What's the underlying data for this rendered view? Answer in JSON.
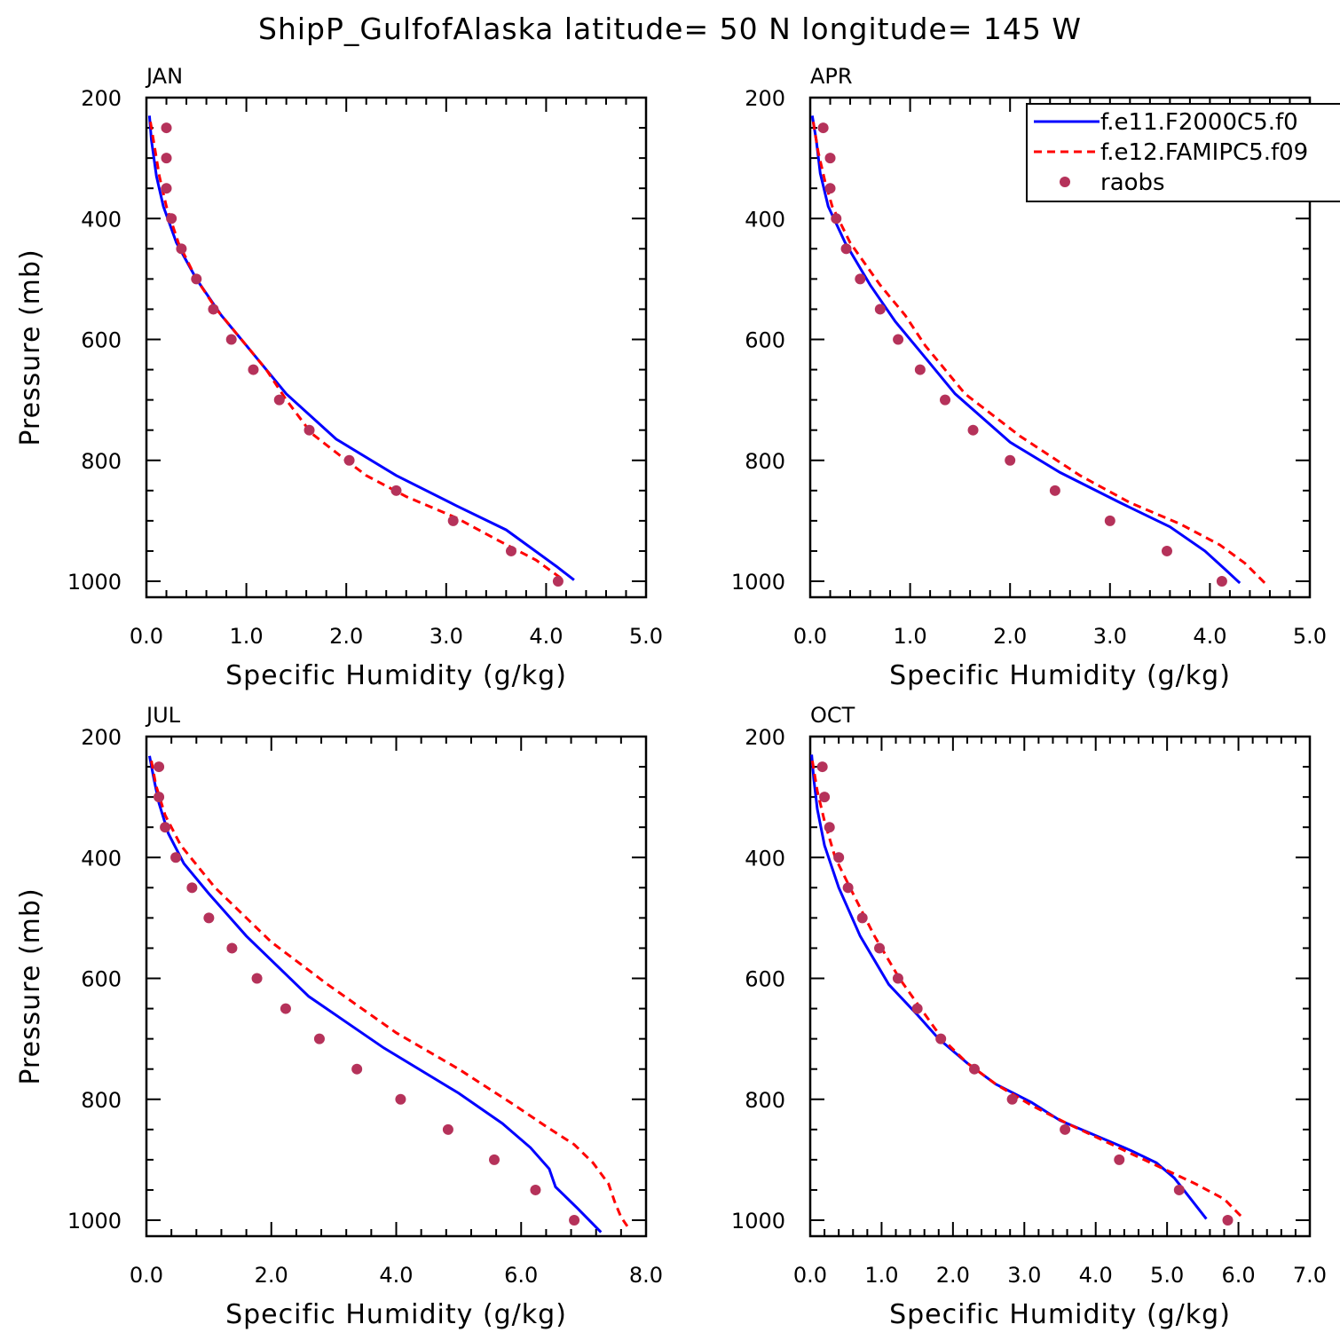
{
  "title": "ShipP_GulfofAlaska  latitude= 50 N longitude= 145 W",
  "colors": {
    "f_e11": "#0000ff",
    "f_e12": "#ff0000",
    "raobs": "#b5325a"
  },
  "legend": {
    "location": "top-right (APR panel)",
    "entries": [
      {
        "label": "f.e11.F2000C5.f0",
        "style": "solid",
        "color": "#0000ff"
      },
      {
        "label": "f.e12.FAMIPC5.f09",
        "style": "dashed",
        "color": "#ff0000"
      },
      {
        "label": "raobs",
        "style": "dots",
        "color": "#b5325a"
      }
    ]
  },
  "chart_data": [
    {
      "type": "line",
      "title": "JAN",
      "xlabel": "Specific Humidity (g/kg)",
      "ylabel": "Pressure (mb)",
      "xlim": [
        0,
        5
      ],
      "ylim": [
        1000,
        200
      ],
      "y_inverted": true,
      "x_ticks": [
        "0.0",
        "1.0",
        "2.0",
        "3.0",
        "4.0",
        "5.0"
      ],
      "y_ticks": [
        "200",
        "400",
        "600",
        "800",
        "1000"
      ],
      "series": [
        {
          "name": "f.e11.F2000C5.f0",
          "style": "solid",
          "points": [
            [
              0.03,
              230
            ],
            [
              0.05,
              270
            ],
            [
              0.1,
              330
            ],
            [
              0.17,
              380
            ],
            [
              0.3,
              440
            ],
            [
              0.5,
              500
            ],
            [
              0.75,
              560
            ],
            [
              1.0,
              610
            ],
            [
              1.4,
              690
            ],
            [
              1.9,
              765
            ],
            [
              2.5,
              825
            ],
            [
              3.1,
              875
            ],
            [
              3.6,
              915
            ],
            [
              3.85,
              945
            ],
            [
              4.1,
              975
            ],
            [
              4.28,
              998
            ]
          ]
        },
        {
          "name": "f.e12.FAMIPC5.f09",
          "style": "dashed",
          "points": [
            [
              0.04,
              240
            ],
            [
              0.08,
              280
            ],
            [
              0.13,
              330
            ],
            [
              0.2,
              380
            ],
            [
              0.32,
              440
            ],
            [
              0.5,
              500
            ],
            [
              0.7,
              550
            ],
            [
              0.95,
              600
            ],
            [
              1.2,
              650
            ],
            [
              1.4,
              700
            ],
            [
              1.65,
              755
            ],
            [
              2.0,
              800
            ],
            [
              2.2,
              825
            ],
            [
              2.6,
              860
            ],
            [
              3.1,
              895
            ],
            [
              3.55,
              935
            ],
            [
              3.9,
              965
            ],
            [
              4.15,
              995
            ]
          ]
        },
        {
          "name": "raobs",
          "style": "dots",
          "points": [
            [
              0.2,
              250
            ],
            [
              0.2,
              300
            ],
            [
              0.2,
              350
            ],
            [
              0.25,
              400
            ],
            [
              0.35,
              450
            ],
            [
              0.5,
              500
            ],
            [
              0.67,
              550
            ],
            [
              0.85,
              600
            ],
            [
              1.07,
              650
            ],
            [
              1.33,
              700
            ],
            [
              1.63,
              750
            ],
            [
              2.03,
              800
            ],
            [
              2.5,
              850
            ],
            [
              3.07,
              900
            ],
            [
              3.65,
              950
            ],
            [
              4.12,
              1000
            ]
          ]
        }
      ]
    },
    {
      "type": "line",
      "title": "APR",
      "xlabel": "Specific Humidity (g/kg)",
      "ylabel": "",
      "xlim": [
        0,
        5
      ],
      "ylim": [
        1000,
        200
      ],
      "y_inverted": true,
      "x_ticks": [
        "0.0",
        "1.0",
        "2.0",
        "3.0",
        "4.0",
        "5.0"
      ],
      "y_ticks": [
        "200",
        "400",
        "600",
        "800",
        "1000"
      ],
      "series": [
        {
          "name": "f.e11.F2000C5.f0",
          "style": "solid",
          "points": [
            [
              0.02,
              230
            ],
            [
              0.06,
              270
            ],
            [
              0.1,
              325
            ],
            [
              0.18,
              380
            ],
            [
              0.35,
              440
            ],
            [
              0.6,
              510
            ],
            [
              0.85,
              570
            ],
            [
              1.1,
              620
            ],
            [
              1.45,
              690
            ],
            [
              2.0,
              770
            ],
            [
              2.5,
              820
            ],
            [
              3.1,
              870
            ],
            [
              3.6,
              910
            ],
            [
              3.95,
              950
            ],
            [
              4.15,
              980
            ],
            [
              4.3,
              1003
            ]
          ]
        },
        {
          "name": "f.e12.FAMIPC5.f09",
          "style": "dashed",
          "points": [
            [
              0.03,
              240
            ],
            [
              0.08,
              290
            ],
            [
              0.15,
              340
            ],
            [
              0.22,
              380
            ],
            [
              0.4,
              440
            ],
            [
              0.7,
              510
            ],
            [
              0.95,
              560
            ],
            [
              1.15,
              610
            ],
            [
              1.55,
              690
            ],
            [
              2.1,
              760
            ],
            [
              2.7,
              825
            ],
            [
              3.2,
              870
            ],
            [
              3.7,
              905
            ],
            [
              4.1,
              940
            ],
            [
              4.35,
              970
            ],
            [
              4.55,
              1003
            ]
          ]
        },
        {
          "name": "raobs",
          "style": "dots",
          "points": [
            [
              0.13,
              250
            ],
            [
              0.2,
              300
            ],
            [
              0.2,
              350
            ],
            [
              0.26,
              400
            ],
            [
              0.36,
              450
            ],
            [
              0.5,
              500
            ],
            [
              0.7,
              550
            ],
            [
              0.88,
              600
            ],
            [
              1.1,
              650
            ],
            [
              1.35,
              700
            ],
            [
              1.63,
              750
            ],
            [
              2.0,
              800
            ],
            [
              2.45,
              850
            ],
            [
              3.0,
              900
            ],
            [
              3.57,
              950
            ],
            [
              4.12,
              1000
            ]
          ]
        }
      ]
    },
    {
      "type": "line",
      "title": "JUL",
      "xlabel": "Specific Humidity (g/kg)",
      "ylabel": "Pressure (mb)",
      "xlim": [
        0,
        8
      ],
      "ylim": [
        1000,
        200
      ],
      "y_inverted": true,
      "x_ticks": [
        "0.0",
        "2.0",
        "4.0",
        "6.0",
        "8.0"
      ],
      "y_ticks": [
        "200",
        "400",
        "600",
        "800",
        "1000"
      ],
      "series": [
        {
          "name": "f.e11.F2000C5.f0",
          "style": "solid",
          "points": [
            [
              0.05,
              232
            ],
            [
              0.12,
              270
            ],
            [
              0.2,
              310
            ],
            [
              0.35,
              360
            ],
            [
              0.6,
              410
            ],
            [
              1.0,
              460
            ],
            [
              1.6,
              530
            ],
            [
              2.6,
              630
            ],
            [
              3.8,
              715
            ],
            [
              5.0,
              790
            ],
            [
              5.7,
              840
            ],
            [
              6.15,
              880
            ],
            [
              6.45,
              915
            ],
            [
              6.55,
              945
            ],
            [
              6.9,
              980
            ],
            [
              7.28,
              1020
            ]
          ]
        },
        {
          "name": "f.e12.FAMIPC5.f09",
          "style": "dashed",
          "points": [
            [
              0.08,
              240
            ],
            [
              0.15,
              280
            ],
            [
              0.3,
              330
            ],
            [
              0.55,
              380
            ],
            [
              1.1,
              450
            ],
            [
              2.0,
              540
            ],
            [
              2.9,
              610
            ],
            [
              4.0,
              690
            ],
            [
              5.0,
              750
            ],
            [
              5.9,
              810
            ],
            [
              6.4,
              845
            ],
            [
              6.85,
              875
            ],
            [
              7.15,
              905
            ],
            [
              7.4,
              940
            ],
            [
              7.5,
              970
            ],
            [
              7.6,
              995
            ],
            [
              7.7,
              1010
            ]
          ]
        },
        {
          "name": "raobs",
          "style": "dots",
          "points": [
            [
              0.2,
              250
            ],
            [
              0.2,
              300
            ],
            [
              0.3,
              350
            ],
            [
              0.47,
              400
            ],
            [
              0.73,
              450
            ],
            [
              1.0,
              500
            ],
            [
              1.37,
              550
            ],
            [
              1.77,
              600
            ],
            [
              2.23,
              650
            ],
            [
              2.77,
              700
            ],
            [
              3.37,
              750
            ],
            [
              4.07,
              800
            ],
            [
              4.83,
              850
            ],
            [
              5.57,
              900
            ],
            [
              6.23,
              950
            ],
            [
              6.85,
              1000
            ]
          ]
        }
      ]
    },
    {
      "type": "line",
      "title": "OCT",
      "xlabel": "Specific Humidity (g/kg)",
      "ylabel": "",
      "xlim": [
        0,
        7
      ],
      "ylim": [
        1000,
        200
      ],
      "y_inverted": true,
      "x_ticks": [
        "0.0",
        "1.0",
        "2.0",
        "3.0",
        "4.0",
        "5.0",
        "6.0",
        "7.0"
      ],
      "y_ticks": [
        "200",
        "400",
        "600",
        "800",
        "1000"
      ],
      "series": [
        {
          "name": "f.e11.F2000C5.f0",
          "style": "solid",
          "points": [
            [
              0.02,
              230
            ],
            [
              0.05,
              270
            ],
            [
              0.1,
              320
            ],
            [
              0.2,
              380
            ],
            [
              0.4,
              450
            ],
            [
              0.7,
              530
            ],
            [
              1.1,
              610
            ],
            [
              1.5,
              660
            ],
            [
              1.8,
              700
            ],
            [
              2.2,
              740
            ],
            [
              2.6,
              775
            ],
            [
              3.1,
              805
            ],
            [
              3.5,
              835
            ],
            [
              4.0,
              860
            ],
            [
              4.5,
              885
            ],
            [
              4.85,
              905
            ],
            [
              5.1,
              930
            ],
            [
              5.3,
              960
            ],
            [
              5.55,
              998
            ]
          ]
        },
        {
          "name": "f.e12.FAMIPC5.f09",
          "style": "dashed",
          "points": [
            [
              0.03,
              240
            ],
            [
              0.1,
              290
            ],
            [
              0.2,
              340
            ],
            [
              0.35,
              400
            ],
            [
              0.6,
              460
            ],
            [
              0.9,
              530
            ],
            [
              1.25,
              600
            ],
            [
              1.55,
              650
            ],
            [
              1.85,
              700
            ],
            [
              2.2,
              740
            ],
            [
              2.6,
              775
            ],
            [
              3.1,
              810
            ],
            [
              3.6,
              840
            ],
            [
              4.05,
              865
            ],
            [
              4.5,
              890
            ],
            [
              4.95,
              915
            ],
            [
              5.4,
              940
            ],
            [
              5.8,
              965
            ],
            [
              6.05,
              995
            ]
          ]
        },
        {
          "name": "raobs",
          "style": "dots",
          "points": [
            [
              0.17,
              250
            ],
            [
              0.2,
              300
            ],
            [
              0.27,
              350
            ],
            [
              0.4,
              400
            ],
            [
              0.53,
              450
            ],
            [
              0.73,
              500
            ],
            [
              0.97,
              550
            ],
            [
              1.23,
              600
            ],
            [
              1.5,
              650
            ],
            [
              1.83,
              700
            ],
            [
              2.3,
              750
            ],
            [
              2.83,
              800
            ],
            [
              3.57,
              850
            ],
            [
              4.33,
              900
            ],
            [
              5.17,
              950
            ],
            [
              5.85,
              1000
            ]
          ]
        }
      ]
    }
  ]
}
